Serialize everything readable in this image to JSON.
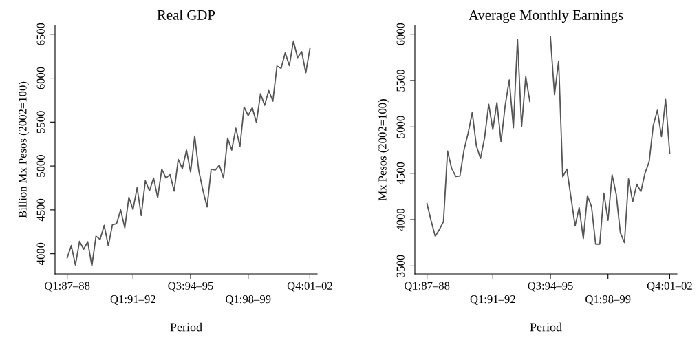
{
  "chart_data": [
    {
      "type": "line",
      "title": "Real GDP",
      "xlabel": "Period",
      "ylabel": "Billion Mx Pesos (2002=100)",
      "categories": [
        "Q1:87–88",
        null,
        null,
        null,
        null,
        null,
        null,
        null,
        null,
        null,
        null,
        null,
        null,
        null,
        null,
        null,
        "Q1:91–92",
        null,
        null,
        null,
        null,
        null,
        null,
        null,
        null,
        null,
        null,
        null,
        null,
        null,
        "Q3:94–95",
        null,
        null,
        null,
        null,
        null,
        null,
        null,
        null,
        null,
        null,
        null,
        null,
        null,
        "Q1:98–99",
        null,
        null,
        null,
        null,
        null,
        null,
        null,
        null,
        null,
        null,
        null,
        null,
        null,
        null,
        "Q4:01–02"
      ],
      "series": [
        {
          "color": "#555555",
          "values": [
            3953,
            4094,
            3872,
            4141,
            4052,
            4136,
            3862,
            4200,
            4164,
            4323,
            4091,
            4331,
            4342,
            4500,
            4297,
            4644,
            4506,
            4753,
            4435,
            4832,
            4717,
            4863,
            4639,
            4965,
            4863,
            4902,
            4714,
            5074,
            4970,
            5181,
            4931,
            5340,
            4944,
            4722,
            4534,
            4962,
            4954,
            5009,
            4863,
            5317,
            5181,
            5431,
            5223,
            5671,
            5575,
            5663,
            5496,
            5822,
            5692,
            5859,
            5739,
            6138,
            6112,
            6289,
            6143,
            6422,
            6234,
            6302,
            6062,
            6336
          ]
        }
      ],
      "ylim": [
        3770,
        6600
      ],
      "yticks": [
        4000,
        4500,
        5000,
        5500,
        6000,
        6500
      ],
      "grid": false,
      "legend": false
    },
    {
      "type": "line",
      "title": "Average Monthly Earnings",
      "xlabel": "Period",
      "ylabel": "Mx Pesos (2002=100)",
      "categories": [
        "Q1:87–88",
        null,
        null,
        null,
        null,
        null,
        null,
        null,
        null,
        null,
        null,
        null,
        null,
        null,
        null,
        null,
        "Q1:91–92",
        null,
        null,
        null,
        null,
        null,
        null,
        null,
        null,
        null,
        null,
        null,
        null,
        null,
        "Q3:94–95",
        null,
        null,
        null,
        null,
        null,
        null,
        null,
        null,
        null,
        null,
        null,
        null,
        null,
        "Q1:98–99",
        null,
        null,
        null,
        null,
        null,
        null,
        null,
        null,
        null,
        null,
        null,
        null,
        null,
        null,
        "Q4:01–02"
      ],
      "series": [
        {
          "color": "#555555",
          "values": [
            4174,
            3987,
            3821,
            3893,
            3977,
            4740,
            4552,
            4466,
            4471,
            4752,
            4933,
            5155,
            4797,
            4661,
            4883,
            5244,
            4972,
            5264,
            4839,
            5229,
            5506,
            4990,
            5946,
            5002,
            5541,
            5274,
            null,
            null,
            null,
            null,
            5975,
            5348,
            5711,
            4463,
            4545,
            4241,
            3932,
            4130,
            3796,
            4258,
            4140,
            3735,
            3735,
            4286,
            3992,
            4483,
            4273,
            3858,
            3752,
            4439,
            4192,
            4382,
            4303,
            4501,
            4624,
            5014,
            5180,
            4896,
            5296,
            4720
          ]
        }
      ],
      "ylim": [
        3414,
        6094
      ],
      "yticks": [
        3500,
        4000,
        4500,
        5000,
        5500,
        6000
      ],
      "grid": false,
      "legend": false
    }
  ]
}
